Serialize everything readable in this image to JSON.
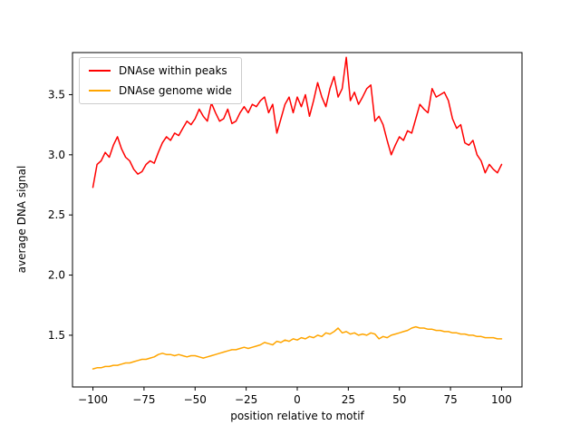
{
  "chart_data": {
    "type": "line",
    "title": "",
    "xlabel": "position relative to motif",
    "ylabel": "average DNA signal",
    "xlim": [
      -110,
      110
    ],
    "ylim": [
      1.07,
      3.85
    ],
    "grid": false,
    "legend_position": "upper left",
    "xtick_values": [
      -100,
      -75,
      -50,
      -25,
      0,
      25,
      50,
      75,
      100
    ],
    "xtick_labels": [
      "−100",
      "−75",
      "−50",
      "−25",
      "0",
      "25",
      "50",
      "75",
      "100"
    ],
    "ytick_values": [
      1.5,
      2.0,
      2.5,
      3.0,
      3.5
    ],
    "ytick_labels": [
      "1.5",
      "2.0",
      "2.5",
      "3.0",
      "3.5"
    ],
    "x": [
      -100,
      -98,
      -96,
      -94,
      -92,
      -90,
      -88,
      -86,
      -84,
      -82,
      -80,
      -78,
      -76,
      -74,
      -72,
      -70,
      -68,
      -66,
      -64,
      -62,
      -60,
      -58,
      -56,
      -54,
      -52,
      -50,
      -48,
      -46,
      -44,
      -42,
      -40,
      -38,
      -36,
      -34,
      -32,
      -30,
      -28,
      -26,
      -24,
      -22,
      -20,
      -18,
      -16,
      -14,
      -12,
      -10,
      -8,
      -6,
      -4,
      -2,
      0,
      2,
      4,
      6,
      8,
      10,
      12,
      14,
      16,
      18,
      20,
      22,
      24,
      26,
      28,
      30,
      32,
      34,
      36,
      38,
      40,
      42,
      44,
      46,
      48,
      50,
      52,
      54,
      56,
      58,
      60,
      62,
      64,
      66,
      68,
      70,
      72,
      74,
      76,
      78,
      80,
      82,
      84,
      86,
      88,
      90,
      92,
      94,
      96,
      98,
      100
    ],
    "series": [
      {
        "name": "DNAse within peaks",
        "color": "#ff0000",
        "values": [
          2.73,
          2.92,
          2.95,
          3.02,
          2.98,
          3.08,
          3.15,
          3.05,
          2.98,
          2.95,
          2.88,
          2.84,
          2.86,
          2.92,
          2.95,
          2.93,
          3.02,
          3.1,
          3.15,
          3.12,
          3.18,
          3.16,
          3.22,
          3.28,
          3.25,
          3.3,
          3.38,
          3.32,
          3.28,
          3.43,
          3.35,
          3.28,
          3.3,
          3.38,
          3.26,
          3.28,
          3.35,
          3.4,
          3.35,
          3.42,
          3.4,
          3.45,
          3.48,
          3.35,
          3.42,
          3.18,
          3.3,
          3.42,
          3.48,
          3.35,
          3.48,
          3.4,
          3.5,
          3.32,
          3.45,
          3.6,
          3.48,
          3.4,
          3.55,
          3.65,
          3.48,
          3.55,
          3.81,
          3.45,
          3.52,
          3.42,
          3.48,
          3.55,
          3.58,
          3.28,
          3.32,
          3.25,
          3.12,
          3.0,
          3.08,
          3.15,
          3.12,
          3.2,
          3.18,
          3.3,
          3.42,
          3.38,
          3.35,
          3.55,
          3.48,
          3.5,
          3.52,
          3.45,
          3.3,
          3.22,
          3.25,
          3.1,
          3.08,
          3.12,
          3.0,
          2.95,
          2.85,
          2.92,
          2.88,
          2.85,
          2.92
        ]
      },
      {
        "name": "DNAse genome wide",
        "color": "#ffa500",
        "values": [
          1.22,
          1.23,
          1.23,
          1.24,
          1.24,
          1.25,
          1.25,
          1.26,
          1.27,
          1.27,
          1.28,
          1.29,
          1.3,
          1.3,
          1.31,
          1.32,
          1.34,
          1.35,
          1.34,
          1.34,
          1.33,
          1.34,
          1.33,
          1.32,
          1.33,
          1.33,
          1.32,
          1.31,
          1.32,
          1.33,
          1.34,
          1.35,
          1.36,
          1.37,
          1.38,
          1.38,
          1.39,
          1.4,
          1.39,
          1.4,
          1.41,
          1.42,
          1.44,
          1.43,
          1.42,
          1.45,
          1.44,
          1.46,
          1.45,
          1.47,
          1.46,
          1.48,
          1.47,
          1.49,
          1.48,
          1.5,
          1.49,
          1.52,
          1.51,
          1.53,
          1.56,
          1.52,
          1.53,
          1.51,
          1.52,
          1.5,
          1.51,
          1.5,
          1.52,
          1.51,
          1.47,
          1.49,
          1.48,
          1.5,
          1.51,
          1.52,
          1.53,
          1.54,
          1.56,
          1.57,
          1.56,
          1.56,
          1.55,
          1.55,
          1.54,
          1.54,
          1.53,
          1.53,
          1.52,
          1.52,
          1.51,
          1.51,
          1.5,
          1.5,
          1.49,
          1.49,
          1.48,
          1.48,
          1.48,
          1.47,
          1.47
        ]
      }
    ]
  }
}
